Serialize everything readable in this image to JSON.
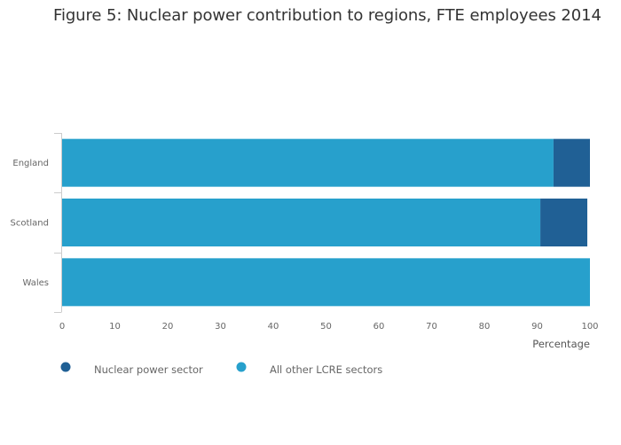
{
  "title": "Figure 5: Nuclear power contribution to regions, FTE employees 2014",
  "chart_data": {
    "type": "bar",
    "orientation": "horizontal",
    "stacked": true,
    "title": "Figure 5: Nuclear power contribution to regions, FTE employees 2014",
    "xlabel": "Percentage",
    "ylabel": "",
    "xlim": [
      0,
      100
    ],
    "xticks": [
      0,
      10,
      20,
      30,
      40,
      50,
      60,
      70,
      80,
      90,
      100
    ],
    "categories": [
      "England",
      "Scotland",
      "Wales"
    ],
    "series": [
      {
        "name": "All other LCRE sectors",
        "values": [
          93.1,
          90.6,
          100
        ],
        "color": "#27a0cc"
      },
      {
        "name": "Nuclear power sector",
        "values": [
          6.9,
          8.9,
          0
        ],
        "color": "#206095"
      }
    ],
    "legend": {
      "placement": "bottom-left",
      "order": [
        "Nuclear power sector",
        "All other LCRE sectors"
      ]
    },
    "grid": false
  }
}
